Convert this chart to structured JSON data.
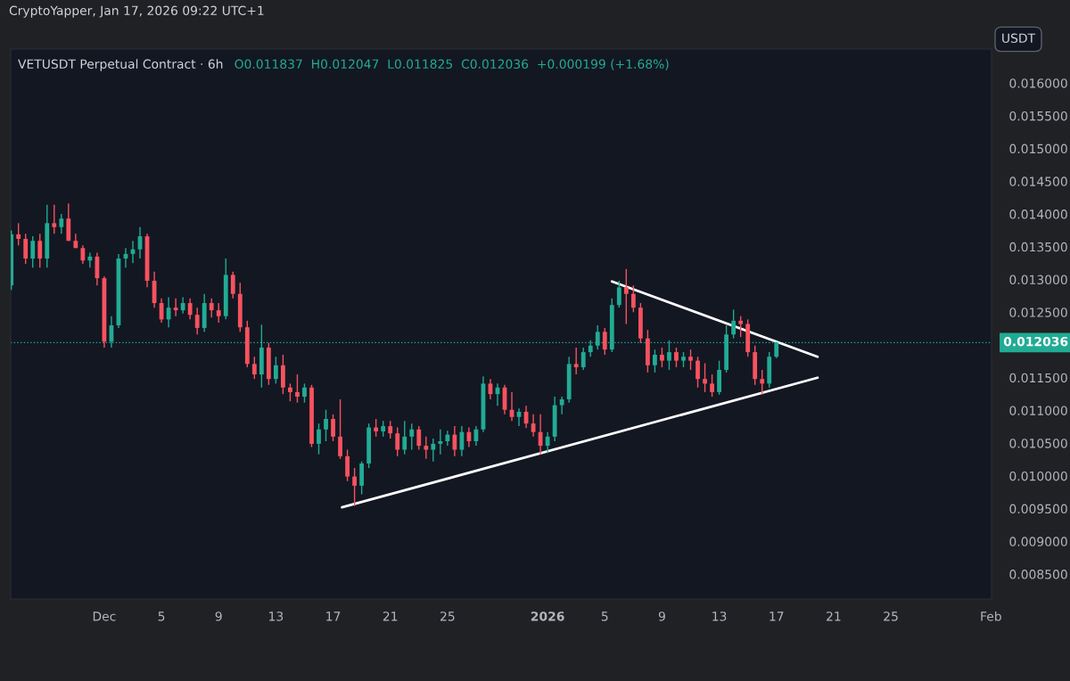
{
  "chart_data": {
    "type": "candlestick",
    "title": "VETUSDT Perpetual Contract · 6h",
    "subtitle": "O0.011837  H0.012047  L0.011825  C0.012036  +0.000199 (+1.68%)",
    "annotations": [
      "CryptoYapper, Jan 17, 2026 09:22 UTC+1",
      "USDT"
    ],
    "series": [
      {
        "colors": [
          "#22ab94",
          "#f7525f",
          "#f7525f",
          "#22ab94",
          "#f7525f",
          "#22ab94",
          "#f7525f",
          "#22ab94",
          "#f7525f",
          "#f7525f",
          "#f7525f",
          "#22ab94",
          "#f7525f",
          "#f7525f",
          "#22ab94",
          "#22ab94",
          "#22ab94",
          "#22ab94",
          "#22ab94",
          "#f7525f",
          "#f7525f",
          "#f7525f",
          "#22ab94",
          "#f7525f",
          "#22ab94",
          "#f7525f",
          "#f7525f",
          "#22ab94",
          "#f7525f",
          "#f7525f",
          "#22ab94",
          "#f7525f",
          "#f7525f",
          "#f7525f",
          "#f7525f",
          "#22ab94",
          "#f7525f",
          "#22ab94",
          "#f7525f",
          "#f7525f",
          "#f7525f",
          "#22ab94",
          "#f7525f",
          "#22ab94",
          "#22ab94",
          "#f7525f",
          "#f7525f",
          "#f7525f",
          "#f7525f",
          "#22ab94",
          "#22ab94",
          "#f7525f",
          "#22ab94",
          "#f7525f",
          "#f7525f",
          "#22ab94",
          "#22ab94",
          "#f7525f",
          "#f7525f",
          "#22ab94",
          "#22ab94",
          "#22ab94",
          "#f7525f",
          "#22ab94",
          "#f7525f",
          "#22ab94",
          "#22ab94",
          "#f7525f",
          "#22ab94",
          "#f7525f",
          "#f7525f",
          "#22ab94",
          "#f7525f",
          "#f7525f",
          "#f7525f",
          "#22ab94",
          "#22ab94",
          "#22ab94",
          "#22ab94",
          "#f7525f",
          "#22ab94",
          "#22ab94",
          "#22ab94",
          "#f7525f",
          "#22ab94",
          "#22ab94",
          "#f7525f",
          "#f7525f",
          "#f7525f",
          "#f7525f",
          "#22ab94",
          "#f7525f",
          "#22ab94",
          "#f7525f",
          "#22ab94",
          "#f7525f",
          "#f7525f",
          "#f7525f",
          "#f7525f",
          "#22ab94",
          "#22ab94",
          "#22ab94",
          "#f7525f",
          "#f7525f",
          "#f7525f",
          "#f7525f",
          "#22ab94",
          "#22ab94"
        ],
        "x": [
          "2025-11-24T12:00",
          "2025-11-25T00:00",
          "2025-11-25T12:00",
          "2025-11-26T00:00",
          "2025-11-26T12:00",
          "2025-11-27T00:00",
          "2025-11-27T12:00",
          "2025-11-28T00:00",
          "2025-11-28T12:00",
          "2025-11-29T00:00",
          "2025-11-29T12:00",
          "2025-11-30T00:00",
          "2025-11-30T12:00",
          "2025-12-01T00:00",
          "2025-12-01T12:00",
          "2025-12-02T00:00",
          "2025-12-02T12:00",
          "2025-12-03T00:00",
          "2025-12-03T12:00",
          "2025-12-04T00:00",
          "2025-12-04T12:00",
          "2025-12-05T00:00",
          "2025-12-05T12:00",
          "2025-12-06T00:00",
          "2025-12-06T12:00",
          "2025-12-07T00:00",
          "2025-12-07T12:00",
          "2025-12-08T00:00",
          "2025-12-08T12:00",
          "2025-12-09T00:00",
          "2025-12-09T12:00",
          "2025-12-10T00:00",
          "2025-12-10T12:00",
          "2025-12-11T00:00",
          "2025-12-11T12:00",
          "2025-12-12T00:00",
          "2025-12-12T12:00",
          "2025-12-13T00:00",
          "2025-12-13T12:00",
          "2025-12-14T00:00",
          "2025-12-14T12:00",
          "2025-12-15T00:00",
          "2025-12-15T12:00",
          "2025-12-16T00:00",
          "2025-12-16T12:00",
          "2025-12-17T00:00",
          "2025-12-17T12:00",
          "2025-12-18T00:00",
          "2025-12-18T12:00",
          "2025-12-19T00:00",
          "2025-12-19T12:00",
          "2025-12-20T00:00",
          "2025-12-20T12:00",
          "2025-12-21T00:00",
          "2025-12-21T12:00",
          "2025-12-22T00:00",
          "2025-12-22T12:00",
          "2025-12-23T00:00",
          "2025-12-23T12:00",
          "2025-12-24T00:00",
          "2025-12-24T12:00",
          "2025-12-25T00:00",
          "2025-12-25T12:00",
          "2025-12-26T00:00",
          "2025-12-26T12:00",
          "2025-12-27T00:00",
          "2025-12-27T12:00",
          "2025-12-28T00:00",
          "2025-12-28T12:00",
          "2025-12-29T00:00",
          "2025-12-29T12:00",
          "2025-12-30T00:00",
          "2025-12-30T12:00",
          "2025-12-31T00:00",
          "2025-12-31T12:00",
          "2026-01-01T00:00",
          "2026-01-01T12:00",
          "2026-01-02T00:00",
          "2026-01-02T12:00",
          "2026-01-03T00:00",
          "2026-01-03T12:00",
          "2026-01-04T00:00",
          "2026-01-04T12:00",
          "2026-01-05T00:00",
          "2026-01-05T12:00",
          "2026-01-06T00:00",
          "2026-01-06T12:00",
          "2026-01-07T00:00",
          "2026-01-07T12:00",
          "2026-01-08T00:00",
          "2026-01-08T12:00",
          "2026-01-09T00:00",
          "2026-01-09T12:00",
          "2026-01-10T00:00",
          "2026-01-10T12:00",
          "2026-01-11T00:00",
          "2026-01-11T12:00",
          "2026-01-12T00:00",
          "2026-01-12T12:00",
          "2026-01-13T00:00",
          "2026-01-13T12:00",
          "2026-01-14T00:00",
          "2026-01-14T12:00",
          "2026-01-15T00:00",
          "2026-01-15T12:00",
          "2026-01-16T00:00",
          "2026-01-16T12:00",
          "2026-01-17T00:00"
        ],
        "ohlc": [
          [
            0.01291,
            0.01375,
            0.01284,
            0.01369
          ],
          [
            0.01369,
            0.01386,
            0.01352,
            0.01362
          ],
          [
            0.01362,
            0.0137,
            0.01324,
            0.01332
          ],
          [
            0.01332,
            0.01366,
            0.01318,
            0.01359
          ],
          [
            0.01359,
            0.0137,
            0.01318,
            0.01332
          ],
          [
            0.01332,
            0.01414,
            0.01318,
            0.01386
          ],
          [
            0.01386,
            0.01414,
            0.0137,
            0.0138
          ],
          [
            0.0138,
            0.014,
            0.0137,
            0.01393
          ],
          [
            0.01393,
            0.01416,
            0.01359,
            0.01359
          ],
          [
            0.01359,
            0.0137,
            0.01348,
            0.01348
          ],
          [
            0.01348,
            0.01352,
            0.01324,
            0.01329
          ],
          [
            0.01329,
            0.01341,
            0.01318,
            0.01335
          ],
          [
            0.01335,
            0.01341,
            0.01291,
            0.01302
          ],
          [
            0.01302,
            0.01305,
            0.01196,
            0.01205
          ],
          [
            0.01205,
            0.01244,
            0.01196,
            0.0123
          ],
          [
            0.0123,
            0.01339,
            0.01226,
            0.01332
          ],
          [
            0.01332,
            0.01348,
            0.01318,
            0.01339
          ],
          [
            0.01339,
            0.01359,
            0.01325,
            0.01346
          ],
          [
            0.01346,
            0.0138,
            0.01332,
            0.01366
          ],
          [
            0.01366,
            0.0137,
            0.01288,
            0.01298
          ],
          [
            0.01298,
            0.01312,
            0.01257,
            0.01264
          ],
          [
            0.01264,
            0.01271,
            0.01234,
            0.01239
          ],
          [
            0.01239,
            0.01273,
            0.01227,
            0.01257
          ],
          [
            0.01257,
            0.01271,
            0.01244,
            0.01253
          ],
          [
            0.01253,
            0.01273,
            0.01248,
            0.01264
          ],
          [
            0.01264,
            0.01271,
            0.01239,
            0.01246
          ],
          [
            0.01246,
            0.01257,
            0.01216,
            0.01226
          ],
          [
            0.01226,
            0.01278,
            0.0122,
            0.01264
          ],
          [
            0.01264,
            0.01271,
            0.01242,
            0.01253
          ],
          [
            0.01253,
            0.01264,
            0.01234,
            0.01244
          ],
          [
            0.01244,
            0.01332,
            0.01239,
            0.01307
          ],
          [
            0.01307,
            0.01312,
            0.01271,
            0.01278
          ],
          [
            0.01278,
            0.01295,
            0.0122,
            0.01227
          ],
          [
            0.01227,
            0.01237,
            0.01166,
            0.01171
          ],
          [
            0.01171,
            0.01182,
            0.01148,
            0.01155
          ],
          [
            0.01155,
            0.01231,
            0.01135,
            0.01196
          ],
          [
            0.01196,
            0.01203,
            0.01139,
            0.01148
          ],
          [
            0.01148,
            0.01182,
            0.01141,
            0.01169
          ],
          [
            0.01169,
            0.01185,
            0.01125,
            0.01135
          ],
          [
            0.01135,
            0.01141,
            0.01114,
            0.01128
          ],
          [
            0.01128,
            0.01155,
            0.01112,
            0.01121
          ],
          [
            0.01121,
            0.01141,
            0.01112,
            0.01135
          ],
          [
            0.01135,
            0.01139,
            0.01044,
            0.01049
          ],
          [
            0.01049,
            0.0108,
            0.01033,
            0.01071
          ],
          [
            0.01071,
            0.01101,
            0.01053,
            0.01087
          ],
          [
            0.01087,
            0.01094,
            0.01053,
            0.0106
          ],
          [
            0.0106,
            0.01117,
            0.01026,
            0.0103
          ],
          [
            0.0103,
            0.0104,
            0.00992,
            0.00999
          ],
          [
            0.00999,
            0.01012,
            0.00954,
            0.00985
          ],
          [
            0.00985,
            0.01022,
            0.00972,
            0.01019
          ],
          [
            0.01019,
            0.0108,
            0.01012,
            0.01074
          ],
          [
            0.01074,
            0.01087,
            0.0106,
            0.01068
          ],
          [
            0.01068,
            0.01084,
            0.0106,
            0.01076
          ],
          [
            0.01076,
            0.01084,
            0.01057,
            0.01065
          ],
          [
            0.01065,
            0.01074,
            0.0103,
            0.0104
          ],
          [
            0.0104,
            0.01084,
            0.01033,
            0.0106
          ],
          [
            0.0106,
            0.0108,
            0.0104,
            0.01071
          ],
          [
            0.01071,
            0.01076,
            0.0104,
            0.01046
          ],
          [
            0.01046,
            0.0106,
            0.01026,
            0.0104
          ],
          [
            0.0104,
            0.01057,
            0.01022,
            0.01049
          ],
          [
            0.01049,
            0.01071,
            0.01033,
            0.01053
          ],
          [
            0.01053,
            0.01069,
            0.01046,
            0.01063
          ],
          [
            0.01063,
            0.01076,
            0.0103,
            0.0104
          ],
          [
            0.0104,
            0.01076,
            0.0103,
            0.01067
          ],
          [
            0.01067,
            0.01074,
            0.01044,
            0.01053
          ],
          [
            0.01053,
            0.01076,
            0.01046,
            0.01071
          ],
          [
            0.01071,
            0.01152,
            0.01067,
            0.01141
          ],
          [
            0.01141,
            0.01148,
            0.01117,
            0.01125
          ],
          [
            0.01125,
            0.01141,
            0.01107,
            0.01135
          ],
          [
            0.01135,
            0.01139,
            0.01094,
            0.01101
          ],
          [
            0.01101,
            0.01128,
            0.01084,
            0.0109
          ],
          [
            0.0109,
            0.01103,
            0.01076,
            0.01098
          ],
          [
            0.01098,
            0.01107,
            0.01073,
            0.0108
          ],
          [
            0.0108,
            0.01094,
            0.0106,
            0.01067
          ],
          [
            0.01067,
            0.01094,
            0.01033,
            0.01046
          ],
          [
            0.01046,
            0.01067,
            0.01035,
            0.0106
          ],
          [
            0.0106,
            0.01121,
            0.01053,
            0.01108
          ],
          [
            0.01108,
            0.01121,
            0.01094,
            0.01117
          ],
          [
            0.01117,
            0.01182,
            0.01112,
            0.01171
          ],
          [
            0.01171,
            0.01196,
            0.01155,
            0.01166
          ],
          [
            0.01166,
            0.01196,
            0.01162,
            0.01189
          ],
          [
            0.01189,
            0.01207,
            0.01182,
            0.01199
          ],
          [
            0.01199,
            0.0123,
            0.01193,
            0.0122
          ],
          [
            0.0122,
            0.01226,
            0.01185,
            0.01193
          ],
          [
            0.01193,
            0.01271,
            0.01189,
            0.01261
          ],
          [
            0.01261,
            0.01298,
            0.01257,
            0.01288
          ],
          [
            0.01288,
            0.01316,
            0.01232,
            0.01278
          ],
          [
            0.01278,
            0.01291,
            0.0125,
            0.01257
          ],
          [
            0.01257,
            0.01264,
            0.01203,
            0.0121
          ],
          [
            0.0121,
            0.01223,
            0.01158,
            0.01169
          ],
          [
            0.01169,
            0.01193,
            0.01158,
            0.01185
          ],
          [
            0.01185,
            0.01196,
            0.01166,
            0.01176
          ],
          [
            0.01176,
            0.01207,
            0.01162,
            0.01189
          ],
          [
            0.01189,
            0.01196,
            0.01166,
            0.01176
          ],
          [
            0.01176,
            0.01189,
            0.01166,
            0.01182
          ],
          [
            0.01182,
            0.01193,
            0.01162,
            0.01176
          ],
          [
            0.01176,
            0.01182,
            0.01135,
            0.01148
          ],
          [
            0.01148,
            0.01172,
            0.01128,
            0.01141
          ],
          [
            0.01141,
            0.01155,
            0.01121,
            0.01128
          ],
          [
            0.01128,
            0.01176,
            0.01124,
            0.01162
          ],
          [
            0.01162,
            0.0123,
            0.01158,
            0.01216
          ],
          [
            0.01216,
            0.01254,
            0.0121,
            0.01237
          ],
          [
            0.01237,
            0.01244,
            0.01212,
            0.01232
          ],
          [
            0.01232,
            0.01239,
            0.01182,
            0.01189
          ],
          [
            0.01189,
            0.01199,
            0.01139,
            0.01148
          ],
          [
            0.01148,
            0.01162,
            0.01124,
            0.01141
          ],
          [
            0.01141,
            0.01189,
            0.01135,
            0.01182
          ],
          [
            0.01182,
            0.012047,
            0.0118,
            0.012036
          ]
        ]
      },
      {
        "type": "line",
        "color": "#ffffff",
        "x": [
          "2025-12-17T15:00",
          "2026-01-19T21:00"
        ],
        "values": [
          0.00952,
          0.0115
        ]
      },
      {
        "type": "line",
        "color": "#ffffff",
        "x": [
          "2026-01-05T12:00",
          "2026-01-19T21:00"
        ],
        "values": [
          0.01297,
          0.01182
        ]
      }
    ],
    "ref_lines": [
      {
        "axis": "y",
        "value": 0.012036,
        "label": "0.012036",
        "color": "#22ab94",
        "line_style": "dotted"
      }
    ],
    "xlim": [
      "2025-11-24T11:00",
      "2026-02-01T01:00"
    ],
    "xticks": [
      {
        "value": "2025-12-01",
        "label": "Dec"
      },
      {
        "value": "2025-12-05",
        "label": "5"
      },
      {
        "value": "2025-12-09",
        "label": "9"
      },
      {
        "value": "2025-12-13",
        "label": "13"
      },
      {
        "value": "2025-12-17",
        "label": "17"
      },
      {
        "value": "2025-12-21",
        "label": "21"
      },
      {
        "value": "2025-12-25",
        "label": "25"
      },
      {
        "value": "2026-01-01",
        "label": "2026"
      },
      {
        "value": "2026-01-05",
        "label": "5"
      },
      {
        "value": "2026-01-09",
        "label": "9"
      },
      {
        "value": "2026-01-13",
        "label": "13"
      },
      {
        "value": "2026-01-17",
        "label": "17"
      },
      {
        "value": "2026-01-21",
        "label": "21"
      },
      {
        "value": "2026-01-25",
        "label": "25"
      },
      {
        "value": "2026-02-01",
        "label": "Feb"
      }
    ],
    "ylim": [
      0.00812,
      0.01652
    ],
    "yticks": [
      {
        "value": 0.0085,
        "label": "0.008500"
      },
      {
        "value": 0.009,
        "label": "0.009000"
      },
      {
        "value": 0.0095,
        "label": "0.009500"
      },
      {
        "value": 0.01,
        "label": "0.010000"
      },
      {
        "value": 0.0105,
        "label": "0.010500"
      },
      {
        "value": 0.011,
        "label": "0.011000"
      },
      {
        "value": 0.0115,
        "label": "0.011500"
      },
      {
        "value": 0.0125,
        "label": "0.012500"
      },
      {
        "value": 0.013,
        "label": "0.013000"
      },
      {
        "value": 0.0135,
        "label": "0.013500"
      },
      {
        "value": 0.014,
        "label": "0.014000"
      },
      {
        "value": 0.0145,
        "label": "0.014500"
      },
      {
        "value": 0.015,
        "label": "0.015000"
      },
      {
        "value": 0.0155,
        "label": "0.015500"
      },
      {
        "value": 0.016,
        "label": "0.016000"
      }
    ]
  }
}
